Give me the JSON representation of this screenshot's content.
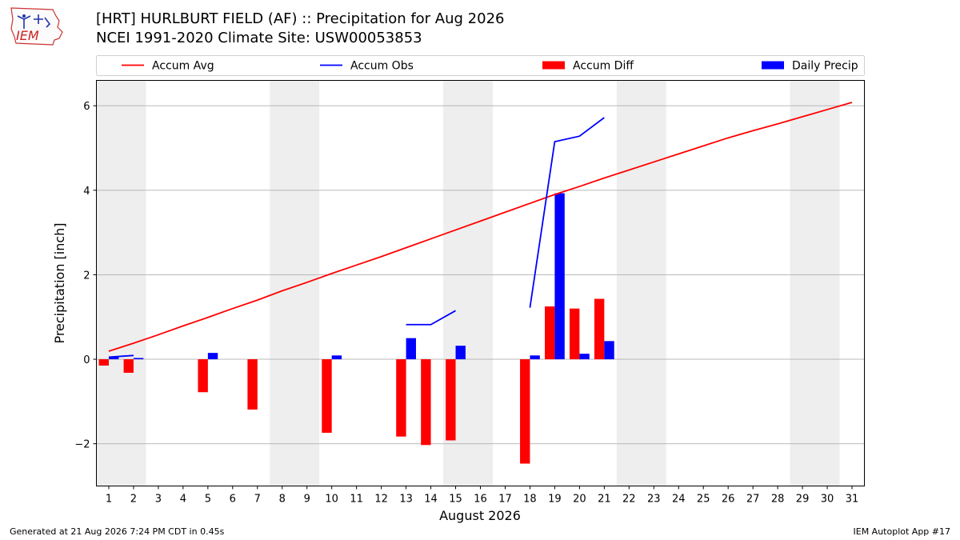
{
  "header": {
    "title_line1": "[HRT] HURLBURT FIELD (AF) :: Precipitation for Aug 2026",
    "title_line2": "NCEI 1991-2020 Climate Site: USW00053853",
    "logo_text": "IEM"
  },
  "footer": {
    "generated": "Generated at 21 Aug 2026 7:24 PM CDT in 0.45s",
    "app": "IEM Autoplot App #17"
  },
  "colors": {
    "accum_avg": "#ff0000",
    "accum_obs": "#0000ff",
    "accum_diff": "#ff0000",
    "daily_precip": "#0000ff",
    "weekend_band": "#eeeeee",
    "grid": "#b0b0b0"
  },
  "chart_data": {
    "type": "bar",
    "xlabel": "August 2026",
    "ylabel": "Precipitation [inch]",
    "xlim": [
      0.5,
      31.5
    ],
    "ylim": [
      -3.0,
      6.6
    ],
    "yticks": [
      -2,
      0,
      2,
      4,
      6
    ],
    "ytick_labels": [
      "−2",
      "0",
      "2",
      "4",
      "6"
    ],
    "grid": "horizontal",
    "legend_position": "top",
    "legend": [
      {
        "label": "Accum Avg",
        "kind": "line",
        "color": "#ff0000"
      },
      {
        "label": "Accum Obs",
        "kind": "line",
        "color": "#0000ff"
      },
      {
        "label": "Accum Diff",
        "kind": "bar",
        "color": "#ff0000"
      },
      {
        "label": "Daily Precip",
        "kind": "bar",
        "color": "#0000ff"
      }
    ],
    "days": [
      1,
      2,
      3,
      4,
      5,
      6,
      7,
      8,
      9,
      10,
      11,
      12,
      13,
      14,
      15,
      16,
      17,
      18,
      19,
      20,
      21,
      22,
      23,
      24,
      25,
      26,
      27,
      28,
      29,
      30,
      31
    ],
    "weekend_bands": [
      [
        0.5,
        2.5
      ],
      [
        7.5,
        9.5
      ],
      [
        14.5,
        16.5
      ],
      [
        21.5,
        23.5
      ],
      [
        28.5,
        30.5
      ]
    ],
    "series": [
      {
        "name": "Accum Avg",
        "type": "line",
        "x": [
          1,
          2,
          3,
          4,
          5,
          6,
          7,
          8,
          9,
          10,
          11,
          12,
          13,
          14,
          15,
          16,
          17,
          18,
          19,
          20,
          21,
          22,
          23,
          24,
          25,
          26,
          27,
          28,
          29,
          30,
          31
        ],
        "values": [
          0.19,
          0.38,
          0.58,
          0.79,
          0.99,
          1.2,
          1.4,
          1.62,
          1.82,
          2.03,
          2.23,
          2.43,
          2.64,
          2.85,
          3.06,
          3.27,
          3.48,
          3.69,
          3.9,
          4.09,
          4.29,
          4.48,
          4.67,
          4.86,
          5.05,
          5.24,
          5.41,
          5.57,
          5.74,
          5.91,
          6.08
        ]
      },
      {
        "name": "Accum Obs",
        "type": "line",
        "segments": [
          {
            "x": [
              1,
              2
            ],
            "values": [
              0.05,
              0.09
            ]
          },
          {
            "x": [
              13,
              14,
              15
            ],
            "values": [
              0.82,
              0.82,
              1.15
            ]
          },
          {
            "x": [
              18,
              19,
              20,
              21
            ],
            "values": [
              1.22,
              5.15,
              5.28,
              5.72
            ]
          }
        ]
      },
      {
        "name": "Accum Diff",
        "type": "bar",
        "x": [
          1,
          2,
          5,
          7,
          10,
          13,
          14,
          15,
          18,
          19,
          20,
          21
        ],
        "values": [
          -0.15,
          -0.32,
          -0.78,
          -1.19,
          -1.74,
          -1.83,
          -2.03,
          -1.92,
          -2.47,
          1.25,
          1.2,
          1.43
        ]
      },
      {
        "name": "Daily Precip",
        "type": "bar",
        "x": [
          1,
          2,
          5,
          10,
          13,
          15,
          18,
          19,
          20,
          21
        ],
        "values": [
          0.05,
          0.03,
          0.15,
          0.09,
          0.5,
          0.32,
          0.09,
          3.93,
          0.13,
          0.43
        ]
      }
    ]
  }
}
